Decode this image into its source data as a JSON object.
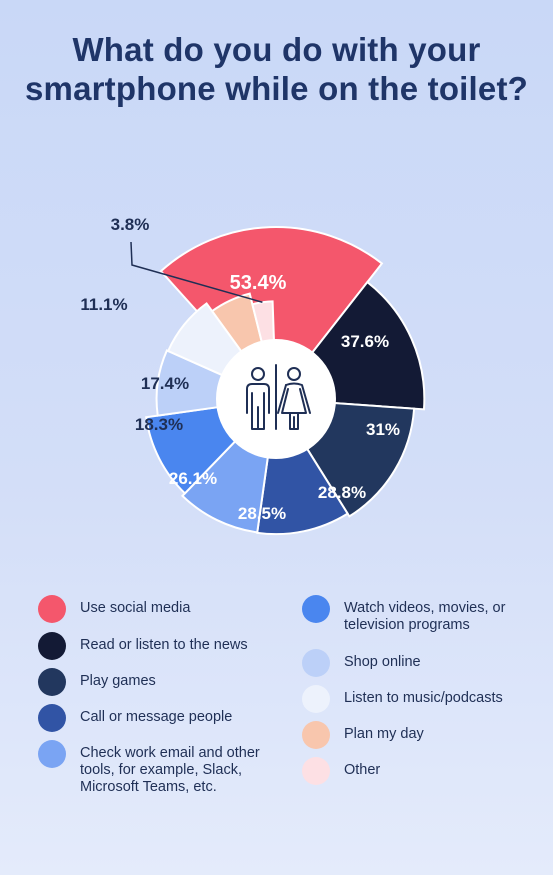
{
  "title": "What do you do with your smartphone while on the toilet?",
  "chart_data": {
    "type": "pie",
    "title": "What do you do with your smartphone while on the toilet?",
    "categories": [
      "Use social media",
      "Read or listen to the news",
      "Play games",
      "Call or message people",
      "Check work email and other tools, for example, Slack, Microsoft Teams, etc.",
      "Watch videos, movies, or television programs",
      "Shop online",
      "Listen to music/podcasts",
      "Plan my day",
      "Other"
    ],
    "values": [
      53.4,
      37.6,
      31,
      28.8,
      28.5,
      26.1,
      18.3,
      17.4,
      11.1,
      3.8
    ],
    "labels": [
      "53.4%",
      "37.6%",
      "31%",
      "28.8%",
      "28.5%",
      "26.1%",
      "18.3%",
      "17.4%",
      "11.1%",
      "3.8%"
    ],
    "colors": [
      "#f4576c",
      "#131a35",
      "#22375e",
      "#3154a5",
      "#7aa4f3",
      "#4a86ef",
      "#bcd0f8",
      "#edf2fc",
      "#f8c6ad",
      "#fde0e4"
    ],
    "center_icon": "restroom-icon",
    "legend_placement": "bottom"
  }
}
